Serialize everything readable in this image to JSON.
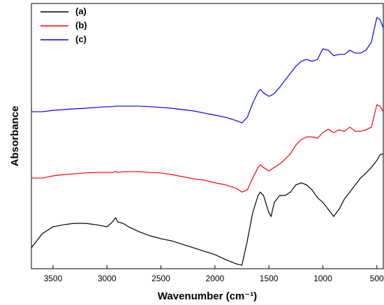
{
  "chart_data": {
    "type": "line",
    "xlabel": "Wavenumber (cm⁻¹)",
    "ylabel": "Absorbance",
    "x": [
      3700,
      3600,
      3500,
      3400,
      3300,
      3200,
      3100,
      3000,
      2950,
      2920,
      2900,
      2850,
      2800,
      2700,
      2600,
      2500,
      2400,
      2300,
      2200,
      2100,
      2000,
      1900,
      1800,
      1750,
      1700,
      1650,
      1600,
      1580,
      1550,
      1500,
      1480,
      1450,
      1400,
      1350,
      1300,
      1250,
      1200,
      1150,
      1100,
      1050,
      1000,
      950,
      900,
      850,
      800,
      750,
      700,
      650,
      600,
      550,
      500,
      470,
      440
    ],
    "series": [
      {
        "name": "(a)",
        "color": "#000000",
        "values": [
          7.9,
          13.2,
          15.8,
          16.6,
          17.1,
          17.1,
          16.6,
          15.8,
          17.6,
          19.2,
          17.6,
          17.1,
          15.8,
          13.9,
          12.4,
          11.3,
          10.5,
          9.2,
          7.9,
          6.6,
          5.3,
          3.4,
          1.8,
          1.3,
          10.5,
          21.1,
          27.6,
          28.9,
          27.6,
          21.1,
          19.7,
          25,
          27.6,
          27.6,
          28.9,
          31.6,
          32.4,
          31.6,
          29.7,
          26.8,
          25,
          22.4,
          19.7,
          22.4,
          26.3,
          28.9,
          31.6,
          34.2,
          36.1,
          38.2,
          40.8,
          42.9,
          43.4
        ]
      },
      {
        "name": "(b)",
        "color": "#ff0000",
        "values": [
          34.2,
          34.2,
          35,
          35.5,
          35.8,
          36.1,
          36.3,
          36.3,
          36.3,
          36.6,
          36.3,
          36.6,
          36.6,
          36.6,
          36.3,
          36.1,
          35.5,
          34.7,
          33.9,
          33.4,
          32.4,
          31.6,
          30.3,
          28.9,
          29.7,
          34.2,
          38.2,
          39.2,
          38.2,
          36.8,
          37.4,
          38.2,
          39.5,
          41.3,
          43.4,
          46.6,
          48.7,
          49.7,
          49.7,
          49.2,
          51.3,
          52.6,
          51.3,
          52.4,
          51.8,
          53.4,
          51.8,
          51.8,
          52.4,
          53.4,
          61.8,
          61.3,
          59.2
        ]
      },
      {
        "name": "(c)",
        "color": "#0000ff",
        "values": [
          59.2,
          59.2,
          59.7,
          60,
          60.3,
          60.5,
          60.8,
          61.1,
          61.1,
          61.3,
          61.3,
          61.3,
          61.3,
          61.3,
          61.1,
          60.8,
          60.5,
          60,
          59.5,
          58.7,
          57.9,
          57.1,
          55.8,
          55,
          57.1,
          62.4,
          66.6,
          67.6,
          66.3,
          65,
          65.3,
          66.1,
          68.4,
          71.1,
          73.7,
          76.3,
          78.2,
          78.9,
          78.2,
          78.9,
          82.9,
          82.4,
          80.3,
          80.8,
          80.8,
          82.4,
          81.3,
          81.3,
          82.4,
          85.5,
          94.7,
          93.9,
          90.8
        ]
      }
    ],
    "xlim": [
      3700,
      440
    ],
    "xticks": [
      3500,
      3000,
      2500,
      2000,
      1500,
      1000,
      500
    ],
    "ylim": [
      0,
      100
    ],
    "grid": false,
    "legend": "upper left"
  }
}
